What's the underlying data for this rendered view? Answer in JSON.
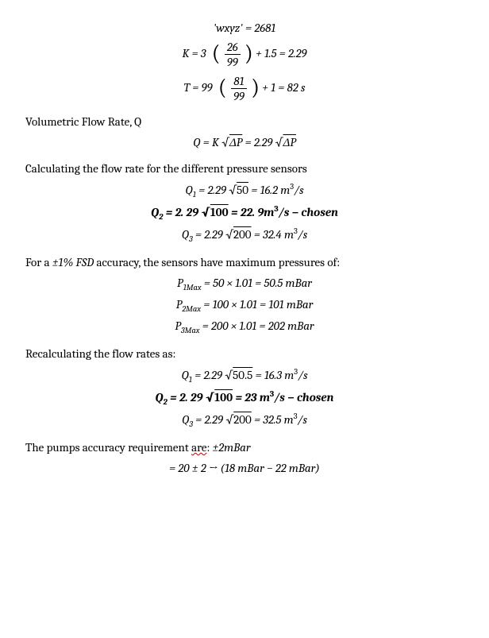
{
  "eq_wxyz": "'wxyz' = 2681",
  "eq_K_lhs": "K = 3",
  "eq_K_frac_num": "26",
  "eq_K_frac_den": "99",
  "eq_K_rhs": " + 1.5 = 2.29",
  "eq_T_lhs": "T = 99",
  "eq_T_frac_num": "81",
  "eq_T_frac_den": "99",
  "eq_T_rhs": " + 1 = 82 s",
  "para_vfr": "Volumetric Flow Rate, Q",
  "eq_Q_lhs": "Q = K",
  "eq_Q_sqrt1": "ΔP",
  "eq_Q_mid": " = 2.29",
  "eq_Q_sqrt2": "ΔP",
  "para_calc": "Calculating the flow rate for the different pressure sensors",
  "eq_Q1_lhs": "Q",
  "eq_Q1_sub": "1",
  "eq_Q1_mid": " = 2.29",
  "eq_Q1_sqrt": "50",
  "eq_Q1_rhs": " = 16.2 m",
  "eq_Q1_unit": "/s",
  "eq_Q2_lhs": "Q",
  "eq_Q2_sub": "2",
  "eq_Q2_mid": " = 2. 29",
  "eq_Q2_sqrt": "100",
  "eq_Q2_rhs": " = 22. 9m",
  "eq_Q2_unit": "/s − chosen",
  "eq_Q3_lhs": "Q",
  "eq_Q3_sub": "3",
  "eq_Q3_mid": " = 2.29",
  "eq_Q3_sqrt": "200",
  "eq_Q3_rhs": " = 32.4 m",
  "eq_Q3_unit": "/s",
  "para_fsd_a": "For a ",
  "para_fsd_b": "±1% FSD",
  "para_fsd_c": " accuracy, the sensors have maximum pressures of:",
  "eq_P1": "P",
  "eq_P1_sub": "1Max",
  "eq_P1_rhs": " = 50 × 1.01 = 50.5 mBar",
  "eq_P2": "P",
  "eq_P2_sub": "2Max",
  "eq_P2_rhs": " = 100 × 1.01 = 101 mBar",
  "eq_P3": "P",
  "eq_P3_sub": "3Max",
  "eq_P3_rhs": " = 200 × 1.01 = 202 mBar",
  "para_recalc": "Recalculating the flow rates as:",
  "eq_Q1b_sqrt": "50.5",
  "eq_Q1b_rhs": " = 16.3 m",
  "eq_Q2b_rhs": " = 23 m",
  "eq_Q3b_rhs": " = 32.5 m",
  "para_pump_a": "The pumps accuracy requirement ",
  "para_pump_are": "are",
  "para_pump_b": ": ",
  "para_pump_c": "±2mBar",
  "eq_final": "= 20 ± 2 → (18 mBar −  22 mBar)"
}
